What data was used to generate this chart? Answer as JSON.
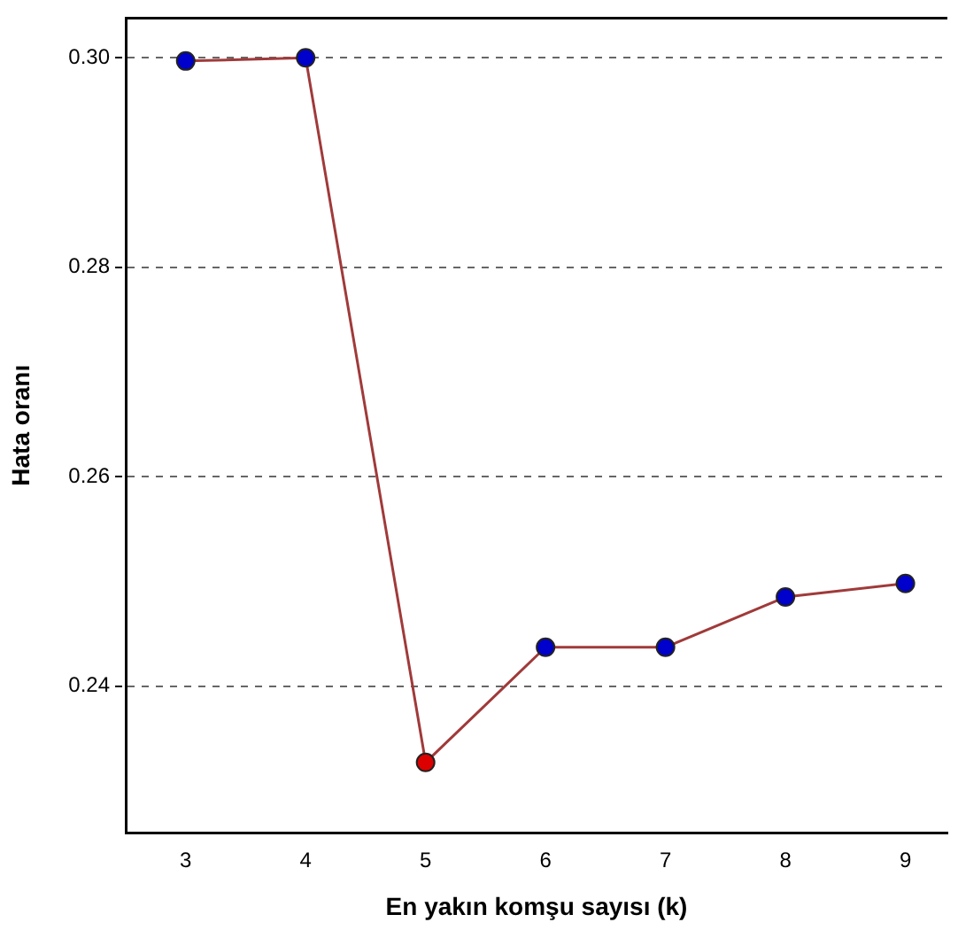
{
  "chart_data": {
    "type": "line",
    "xlabel": "En yakın komşu sayısı (k)",
    "ylabel": "Hata oranı",
    "x": [
      3,
      4,
      5,
      6,
      7,
      8,
      9
    ],
    "series": [
      {
        "color": "#a03a3a",
        "colors": [
          "#0000cc",
          "#0000cc",
          "#dd0000",
          "#0000cc",
          "#0000cc",
          "#0000cc",
          "#0000cc"
        ],
        "values": [
          0.2997,
          0.3,
          0.2327,
          0.2437,
          0.2437,
          0.2485,
          0.2498
        ]
      }
    ],
    "xlim": [
      2.5,
      9.35
    ],
    "xticks": [
      3,
      4,
      5,
      6,
      7,
      8,
      9
    ],
    "ylim": [
      0.226,
      0.3038
    ],
    "yticks": [
      {
        "value": 0.24,
        "label": "0.24"
      },
      {
        "value": 0.26,
        "label": "0.26"
      },
      {
        "value": 0.28,
        "label": "0.28"
      },
      {
        "value": 0.3,
        "label": "0.30"
      }
    ],
    "grid": "y",
    "marker": "circle",
    "line_style": "solid",
    "legend": false
  }
}
